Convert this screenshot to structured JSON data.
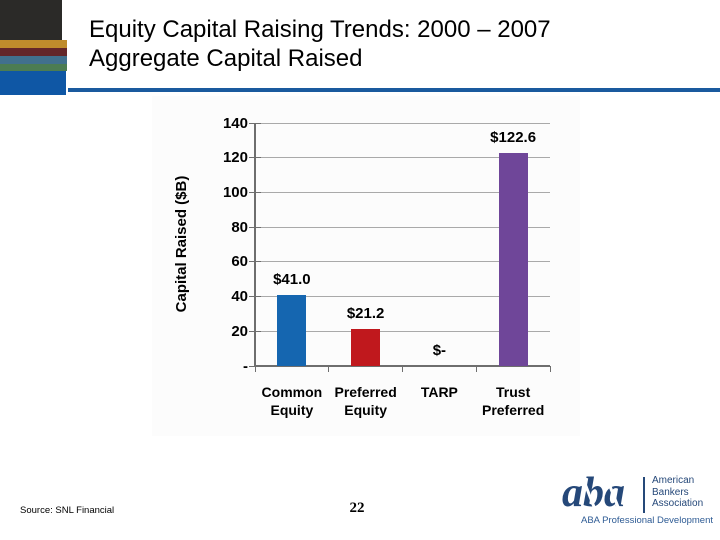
{
  "slide": {
    "title_line1": "Equity Capital Raising Trends: 2000 – 2007",
    "title_line2": "Aggregate Capital Raised",
    "source_note": "Source: SNL Financial",
    "page_number": "22"
  },
  "chart_data": {
    "type": "bar",
    "title": "",
    "categories": [
      "Common Equity",
      "Preferred Equity",
      "TARP",
      "Trust Preferred"
    ],
    "values": [
      41.0,
      21.2,
      0,
      122.6
    ],
    "value_labels": [
      "$41.0",
      "$21.2",
      "$-",
      "$122.6"
    ],
    "bar_colors": [
      "#1566b0",
      "#c0181d",
      null,
      "#6f4699"
    ],
    "xlabel": "",
    "ylabel": "Capital Raised ($B)",
    "ylim": [
      0,
      140
    ],
    "ytick_interval": 20,
    "ytick_labels": [
      "-",
      "20",
      "40",
      "60",
      "80",
      "100",
      "120",
      "140"
    ],
    "grid": true,
    "legend": false,
    "gridline_color": "#a9a9a9",
    "axis_color": "#6e6e6e"
  },
  "footer_logo": {
    "monogram": "aba",
    "org_lines": [
      "American",
      "Bankers",
      "Association"
    ],
    "program": "ABA Professional Development",
    "brand_color": "#254879"
  },
  "decoration_colors": {
    "dark_block": "#2b2a28",
    "gold_stripe": "#bf8c2c",
    "maroon_stripe": "#632629",
    "steel_stripe": "#41708d",
    "green_stripe": "#4c7c52",
    "blue_block": "#0f57a5",
    "title_rule": "#1a5a9e"
  }
}
